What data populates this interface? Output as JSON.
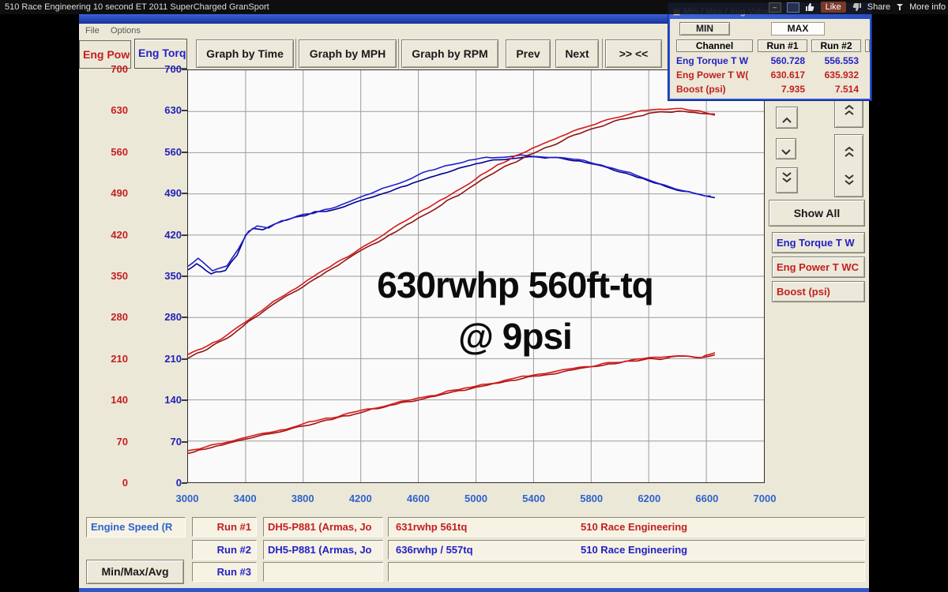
{
  "video": {
    "title": "510 Race Engineering 10 second ET 2011 SuperCharged GranSport",
    "controls": {
      "minimize": "–",
      "restore": "",
      "like": "Like",
      "share": "Share",
      "more_info": "More info"
    }
  },
  "menu": {
    "items": [
      "File",
      "Options"
    ]
  },
  "axis_tabs": {
    "power": "Eng Powe",
    "torque": "Eng Torq"
  },
  "toolbar": {
    "buttons": [
      "Graph by Time",
      "Graph by MPH",
      "Graph by RPM",
      "Prev",
      "Next",
      ">> <<"
    ]
  },
  "minmax_window": {
    "title": "Min / Max / Avg Values",
    "tabs": {
      "min": "MIN",
      "max": "MAX"
    },
    "headers": [
      "Channel",
      "Run #1",
      "Run #2"
    ],
    "rows": [
      {
        "channel": "Eng Torque T W",
        "run1": "560.728",
        "run2": "556.553",
        "color": "#2222c4"
      },
      {
        "channel": "Eng Power T W(",
        "run1": "630.617",
        "run2": "635.932",
        "color": "#c32020"
      },
      {
        "channel": "Boost (psi)",
        "run1": "7.935",
        "run2": "7.514",
        "color": "#c32020"
      }
    ]
  },
  "right_panel": {
    "show_all": "Show All",
    "channels": [
      {
        "label": "Eng Torque T W",
        "color": "#2222c4"
      },
      {
        "label": "Eng Power T WC",
        "color": "#c32020"
      },
      {
        "label": "Boost (psi)",
        "color": "#c32020"
      }
    ]
  },
  "bottom": {
    "x_channel": "Engine Speed (R",
    "minmax_button": "Min/Max/Avg",
    "runs": [
      {
        "label": "Run #1",
        "color": "#c32020",
        "operator": "DH5-P881 (Armas, Jo",
        "result": "631rwhp 561tq",
        "team": "510 Race Engineering"
      },
      {
        "label": "Run #2",
        "color": "#2222c4",
        "operator": "DH5-P881 (Armas, Jo",
        "result": "636rwhp / 557tq",
        "team": "510 Race Engineering"
      },
      {
        "label": "Run #3",
        "color": "#2222c4",
        "operator": "",
        "result": "",
        "team": ""
      }
    ]
  },
  "annotation": {
    "line1": "630rwhp 560ft-tq",
    "line2": "@ 9psi"
  },
  "chart_data": {
    "type": "line",
    "xlabel": "Engine Speed (R",
    "xlim": [
      3000,
      7000
    ],
    "ylim": [
      0,
      700
    ],
    "x_ticks": [
      3000,
      3400,
      3800,
      4200,
      4600,
      5000,
      5400,
      5800,
      6200,
      6600,
      7000
    ],
    "y_ticks": [
      0,
      70,
      140,
      210,
      280,
      350,
      420,
      490,
      560,
      630,
      700
    ],
    "y_axis_left_color": "#c32020",
    "y_axis_right_color": "#2222b8",
    "grid": true,
    "legend_position": "none",
    "series": [
      {
        "name": "Eng Torque T W - Run #1",
        "color": "#00008f",
        "points": [
          [
            3000,
            362
          ],
          [
            3060,
            372
          ],
          [
            3160,
            354
          ],
          [
            3260,
            360
          ],
          [
            3340,
            386
          ],
          [
            3400,
            420
          ],
          [
            3450,
            432
          ],
          [
            3520,
            428
          ],
          [
            3600,
            440
          ],
          [
            3700,
            447
          ],
          [
            3780,
            452
          ],
          [
            3880,
            458
          ],
          [
            4000,
            464
          ],
          [
            4120,
            472
          ],
          [
            4240,
            482
          ],
          [
            4360,
            492
          ],
          [
            4480,
            502
          ],
          [
            4600,
            512
          ],
          [
            4720,
            522
          ],
          [
            4840,
            531
          ],
          [
            4960,
            539
          ],
          [
            5080,
            545
          ],
          [
            5200,
            549
          ],
          [
            5320,
            552
          ],
          [
            5440,
            553
          ],
          [
            5560,
            551
          ],
          [
            5680,
            547
          ],
          [
            5800,
            541
          ],
          [
            5920,
            534
          ],
          [
            6040,
            526
          ],
          [
            6160,
            516
          ],
          [
            6280,
            506
          ],
          [
            6400,
            497
          ],
          [
            6520,
            489
          ],
          [
            6660,
            484
          ]
        ]
      },
      {
        "name": "Eng Torque T W - Run #2",
        "color": "#2020cf",
        "points": [
          [
            3000,
            368
          ],
          [
            3070,
            380
          ],
          [
            3170,
            358
          ],
          [
            3270,
            368
          ],
          [
            3350,
            398
          ],
          [
            3420,
            426
          ],
          [
            3480,
            436
          ],
          [
            3560,
            432
          ],
          [
            3650,
            444
          ],
          [
            3760,
            452
          ],
          [
            3870,
            458
          ],
          [
            3990,
            466
          ],
          [
            4110,
            476
          ],
          [
            4230,
            487
          ],
          [
            4350,
            498
          ],
          [
            4470,
            510
          ],
          [
            4590,
            521
          ],
          [
            4710,
            531
          ],
          [
            4830,
            540
          ],
          [
            4950,
            547
          ],
          [
            5070,
            552
          ],
          [
            5190,
            554
          ],
          [
            5310,
            555
          ],
          [
            5430,
            554
          ],
          [
            5550,
            552
          ],
          [
            5670,
            549
          ],
          [
            5790,
            544
          ],
          [
            5910,
            537
          ],
          [
            6030,
            528
          ],
          [
            6150,
            519
          ],
          [
            6270,
            509
          ],
          [
            6390,
            499
          ],
          [
            6510,
            491
          ],
          [
            6630,
            486
          ]
        ]
      },
      {
        "name": "Eng Power T WC - Run #1",
        "color": "#8f1414",
        "points": [
          [
            3000,
            212
          ],
          [
            3100,
            223
          ],
          [
            3200,
            236
          ],
          [
            3300,
            250
          ],
          [
            3380,
            266
          ],
          [
            3460,
            280
          ],
          [
            3560,
            297
          ],
          [
            3680,
            315
          ],
          [
            3800,
            334
          ],
          [
            3920,
            352
          ],
          [
            4040,
            370
          ],
          [
            4160,
            387
          ],
          [
            4280,
            403
          ],
          [
            4400,
            420
          ],
          [
            4520,
            437
          ],
          [
            4640,
            454
          ],
          [
            4760,
            471
          ],
          [
            4880,
            489
          ],
          [
            5000,
            507
          ],
          [
            5120,
            524
          ],
          [
            5240,
            540
          ],
          [
            5360,
            555
          ],
          [
            5480,
            568
          ],
          [
            5600,
            581
          ],
          [
            5720,
            593
          ],
          [
            5840,
            604
          ],
          [
            5960,
            613
          ],
          [
            6080,
            620
          ],
          [
            6200,
            626
          ],
          [
            6320,
            629
          ],
          [
            6440,
            630
          ],
          [
            6560,
            627
          ],
          [
            6660,
            624
          ]
        ]
      },
      {
        "name": "Eng Power T WC - Run #2",
        "color": "#d41a1a",
        "points": [
          [
            3000,
            216
          ],
          [
            3100,
            228
          ],
          [
            3210,
            242
          ],
          [
            3310,
            257
          ],
          [
            3390,
            272
          ],
          [
            3480,
            288
          ],
          [
            3590,
            306
          ],
          [
            3710,
            324
          ],
          [
            3830,
            343
          ],
          [
            3950,
            361
          ],
          [
            4070,
            379
          ],
          [
            4190,
            396
          ],
          [
            4310,
            413
          ],
          [
            4430,
            431
          ],
          [
            4550,
            449
          ],
          [
            4670,
            467
          ],
          [
            4790,
            485
          ],
          [
            4910,
            503
          ],
          [
            5030,
            521
          ],
          [
            5150,
            538
          ],
          [
            5270,
            553
          ],
          [
            5390,
            567
          ],
          [
            5510,
            580
          ],
          [
            5630,
            592
          ],
          [
            5750,
            603
          ],
          [
            5870,
            613
          ],
          [
            5990,
            622
          ],
          [
            6110,
            629
          ],
          [
            6230,
            633
          ],
          [
            6350,
            635
          ],
          [
            6470,
            633
          ],
          [
            6590,
            629
          ],
          [
            6660,
            626
          ]
        ]
      },
      {
        "name": "Boost (psi) - Run #1",
        "color": "#a81414",
        "points": [
          [
            3000,
            50
          ],
          [
            3200,
            61
          ],
          [
            3400,
            73
          ],
          [
            3600,
            85
          ],
          [
            3800,
            96
          ],
          [
            4000,
            108
          ],
          [
            4200,
            119
          ],
          [
            4400,
            130
          ],
          [
            4600,
            141
          ],
          [
            4800,
            151
          ],
          [
            5000,
            161
          ],
          [
            5200,
            171
          ],
          [
            5400,
            180
          ],
          [
            5600,
            188
          ],
          [
            5800,
            196
          ],
          [
            6000,
            203
          ],
          [
            6200,
            209
          ],
          [
            6400,
            213
          ],
          [
            6550,
            213
          ],
          [
            6660,
            217
          ]
        ]
      },
      {
        "name": "Boost (psi) - Run #2",
        "color": "#d41a1a",
        "points": [
          [
            3000,
            52
          ],
          [
            3200,
            64
          ],
          [
            3400,
            75
          ],
          [
            3600,
            87
          ],
          [
            3800,
            99
          ],
          [
            4000,
            110
          ],
          [
            4200,
            122
          ],
          [
            4400,
            132
          ],
          [
            4600,
            143
          ],
          [
            4800,
            153
          ],
          [
            5000,
            163
          ],
          [
            5200,
            173
          ],
          [
            5400,
            182
          ],
          [
            5600,
            190
          ],
          [
            5800,
            198
          ],
          [
            6000,
            205
          ],
          [
            6200,
            211
          ],
          [
            6400,
            215
          ],
          [
            6560,
            212
          ],
          [
            6660,
            219
          ]
        ]
      }
    ]
  }
}
